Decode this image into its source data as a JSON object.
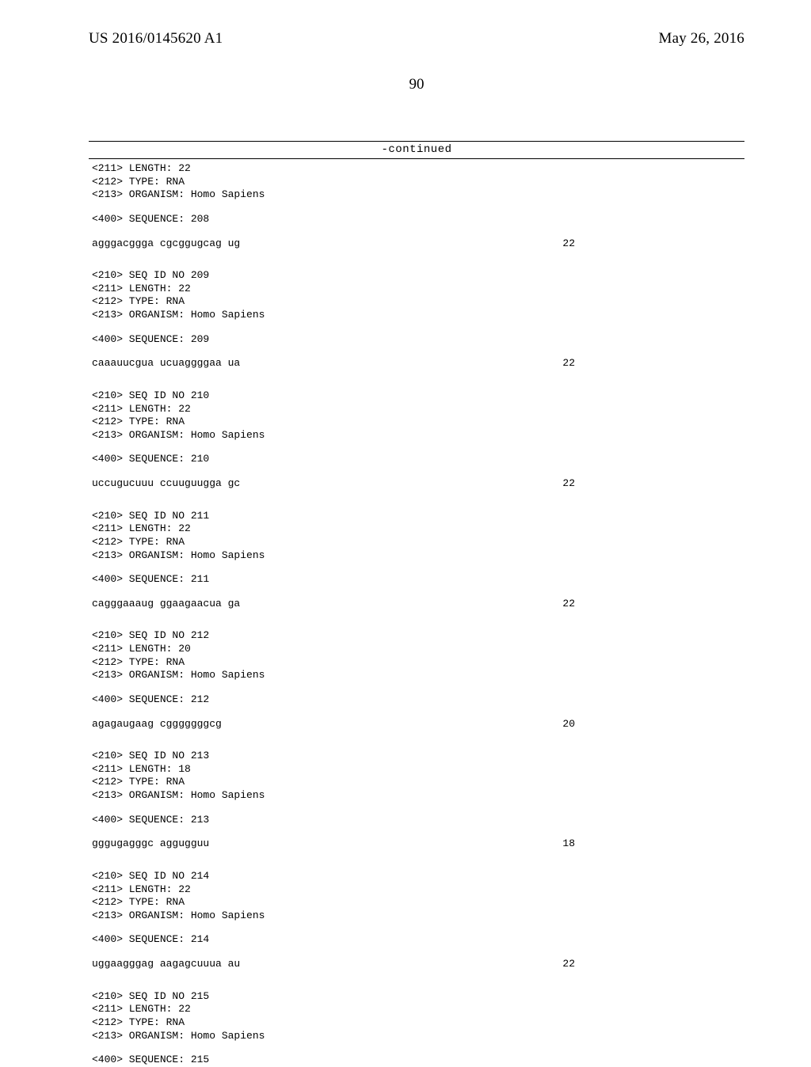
{
  "header": {
    "publication": "US 2016/0145620 A1",
    "date": "May 26, 2016"
  },
  "page_number": "90",
  "continued_label": "-continued",
  "entries": [
    {
      "meta": [
        "<211> LENGTH: 22",
        "<212> TYPE: RNA",
        "<213> ORGANISM: Homo Sapiens"
      ],
      "sequence_header": "<400> SEQUENCE: 208",
      "sequence": "agggacggga cgcggugcag ug",
      "seq_len": "22"
    },
    {
      "meta": [
        "<210> SEQ ID NO 209",
        "<211> LENGTH: 22",
        "<212> TYPE: RNA",
        "<213> ORGANISM: Homo Sapiens"
      ],
      "sequence_header": "<400> SEQUENCE: 209",
      "sequence": "caaauucgua ucuaggggaa ua",
      "seq_len": "22"
    },
    {
      "meta": [
        "<210> SEQ ID NO 210",
        "<211> LENGTH: 22",
        "<212> TYPE: RNA",
        "<213> ORGANISM: Homo Sapiens"
      ],
      "sequence_header": "<400> SEQUENCE: 210",
      "sequence": "uccugucuuu ccuuguugga gc",
      "seq_len": "22"
    },
    {
      "meta": [
        "<210> SEQ ID NO 211",
        "<211> LENGTH: 22",
        "<212> TYPE: RNA",
        "<213> ORGANISM: Homo Sapiens"
      ],
      "sequence_header": "<400> SEQUENCE: 211",
      "sequence": "cagggaaaug ggaagaacua ga",
      "seq_len": "22"
    },
    {
      "meta": [
        "<210> SEQ ID NO 212",
        "<211> LENGTH: 20",
        "<212> TYPE: RNA",
        "<213> ORGANISM: Homo Sapiens"
      ],
      "sequence_header": "<400> SEQUENCE: 212",
      "sequence": "agagaugaag cgggggggcg",
      "seq_len": "20"
    },
    {
      "meta": [
        "<210> SEQ ID NO 213",
        "<211> LENGTH: 18",
        "<212> TYPE: RNA",
        "<213> ORGANISM: Homo Sapiens"
      ],
      "sequence_header": "<400> SEQUENCE: 213",
      "sequence": "gggugagggc aggugguu",
      "seq_len": "18"
    },
    {
      "meta": [
        "<210> SEQ ID NO 214",
        "<211> LENGTH: 22",
        "<212> TYPE: RNA",
        "<213> ORGANISM: Homo Sapiens"
      ],
      "sequence_header": "<400> SEQUENCE: 214",
      "sequence": "uggaagggag aagagcuuua au",
      "seq_len": "22"
    },
    {
      "meta": [
        "<210> SEQ ID NO 215",
        "<211> LENGTH: 22",
        "<212> TYPE: RNA",
        "<213> ORGANISM: Homo Sapiens"
      ],
      "sequence_header": "<400> SEQUENCE: 215",
      "sequence": null,
      "seq_len": null
    }
  ]
}
